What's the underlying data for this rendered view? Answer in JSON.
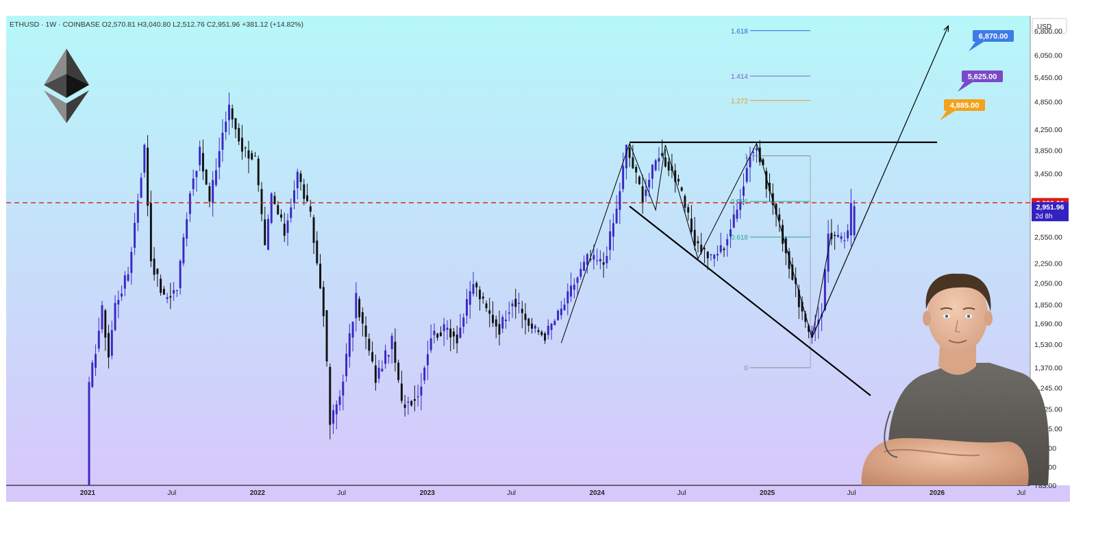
{
  "header": {
    "symbol": "ETHUSD",
    "interval": "1W",
    "exchange": "COINBASE",
    "ohlc": "O2,570.81  H3,040.80  L2,512.76  C2,951.96  +381.12 (+14.82%)"
  },
  "currency_label": "USD",
  "colors": {
    "bg_top": "#b6f7f9",
    "bg_bottom": "#d6c8fb",
    "up_candle": "#3a27c4",
    "down_candle": "#111111",
    "dashed_line": "#e02828",
    "target_blue": "#3d7be6",
    "target_purple": "#7a49c9",
    "target_orange": "#f2a21c",
    "price_badge": "#3321c0",
    "level_badge": "#e01a1a"
  },
  "chart_data": {
    "type": "candlestick",
    "ylim": [
      783,
      7300
    ],
    "y_scale": "log",
    "y_tick_labels": [
      "6,800.00",
      "6,050.00",
      "5,450.00",
      "4,850.00",
      "4,250.00",
      "3,850.00",
      "3,450.00",
      "2,550.00",
      "2,250.00",
      "2,050.00",
      "1,850.00",
      "1,690.00",
      "1,530.00",
      "1,370.00",
      "1,245.00",
      "1,125.00",
      "1,025.00",
      "935.00",
      "855.00",
      "783.00"
    ],
    "x_tick_labels": [
      {
        "label": "2021",
        "bold": true
      },
      {
        "label": "Jul",
        "bold": false
      },
      {
        "label": "2022",
        "bold": true
      },
      {
        "label": "Jul",
        "bold": false
      },
      {
        "label": "2023",
        "bold": true
      },
      {
        "label": "Jul",
        "bold": false
      },
      {
        "label": "2024",
        "bold": true
      },
      {
        "label": "Jul",
        "bold": false
      },
      {
        "label": "2025",
        "bold": true
      },
      {
        "label": "Jul",
        "bold": false
      },
      {
        "label": "2026",
        "bold": true
      },
      {
        "label": "Jul",
        "bold": false
      }
    ],
    "price_path": [
      [
        "2021-01-04",
        730
      ],
      [
        "2021-01-11",
        1250
      ],
      [
        "2021-02-08",
        1800
      ],
      [
        "2021-02-22",
        1450
      ],
      [
        "2021-03-08",
        1850
      ],
      [
        "2021-04-05",
        2150
      ],
      [
        "2021-05-10",
        3900
      ],
      [
        "2021-05-24",
        2300
      ],
      [
        "2021-06-21",
        1900
      ],
      [
        "2021-07-19",
        2000
      ],
      [
        "2021-08-16",
        3200
      ],
      [
        "2021-09-06",
        3800
      ],
      [
        "2021-09-27",
        3000
      ],
      [
        "2021-10-25",
        4200
      ],
      [
        "2021-11-08",
        4700
      ],
      [
        "2021-12-06",
        3900
      ],
      [
        "2022-01-03",
        3700
      ],
      [
        "2022-01-24",
        2400
      ],
      [
        "2022-02-07",
        3100
      ],
      [
        "2022-03-07",
        2600
      ],
      [
        "2022-04-04",
        3450
      ],
      [
        "2022-05-02",
        2800
      ],
      [
        "2022-05-30",
        1800
      ],
      [
        "2022-06-13",
        1050
      ],
      [
        "2022-07-04",
        1200
      ],
      [
        "2022-08-08",
        1900
      ],
      [
        "2022-09-19",
        1300
      ],
      [
        "2022-10-24",
        1550
      ],
      [
        "2022-11-14",
        1150
      ],
      [
        "2022-12-19",
        1200
      ],
      [
        "2023-01-16",
        1600
      ],
      [
        "2023-02-20",
        1650
      ],
      [
        "2023-03-13",
        1580
      ],
      [
        "2023-04-17",
        2050
      ],
      [
        "2023-05-15",
        1800
      ],
      [
        "2023-06-12",
        1650
      ],
      [
        "2023-07-10",
        1900
      ],
      [
        "2023-08-21",
        1650
      ],
      [
        "2023-09-18",
        1600
      ],
      [
        "2023-10-23",
        1800
      ],
      [
        "2023-11-20",
        2050
      ],
      [
        "2023-12-18",
        2300
      ],
      [
        "2024-01-22",
        2250
      ],
      [
        "2024-02-19",
        2900
      ],
      [
        "2024-03-11",
        3900
      ],
      [
        "2024-04-15",
        3100
      ],
      [
        "2024-05-20",
        3800
      ],
      [
        "2024-06-17",
        3500
      ],
      [
        "2024-07-08",
        3100
      ],
      [
        "2024-08-05",
        2500
      ],
      [
        "2024-09-09",
        2300
      ],
      [
        "2024-10-07",
        2450
      ],
      [
        "2024-11-04",
        2900
      ],
      [
        "2024-12-02",
        3800
      ],
      [
        "2024-12-16",
        3900
      ],
      [
        "2025-01-06",
        3300
      ],
      [
        "2025-02-03",
        2700
      ],
      [
        "2025-03-03",
        2100
      ],
      [
        "2025-04-07",
        1580
      ],
      [
        "2025-05-05",
        1800
      ],
      [
        "2025-05-19",
        2600
      ],
      [
        "2025-06-16",
        2500
      ],
      [
        "2025-06-30",
        2570
      ],
      [
        "2025-07-07",
        2952
      ]
    ],
    "last_candle": {
      "open": 2570.81,
      "high": 3040.8,
      "low": 2512.76,
      "close": 2951.96,
      "change": "+381.12 (+14.82%)"
    },
    "fib_levels": [
      {
        "label": "1.618",
        "price": 6800,
        "color": "#2d62d8"
      },
      {
        "label": "1.414",
        "price": 5480,
        "color": "#7e59c6"
      },
      {
        "label": "1.272",
        "price": 4880,
        "color": "#e79a18"
      },
      {
        "label": "1",
        "price": 3750,
        "color": "#888888"
      },
      {
        "label": "0.786",
        "price": 3020,
        "color": "#26a69a"
      },
      {
        "label": "0.618",
        "price": 2550,
        "color": "#26a69a"
      },
      {
        "label": "0",
        "price": 1370,
        "color": "#888888"
      }
    ],
    "resistance_level": 4000,
    "support_line": [
      [
        "2024-03-11",
        2950
      ],
      [
        "2025-08-11",
        1200
      ]
    ],
    "dashed_level": 3000,
    "current_price_label": "2,951.96",
    "dashed_level_label": "3,000.00",
    "countdown": "2d 8h",
    "targets": [
      {
        "label": "6,870.00",
        "price": 6870,
        "color": "#3d7be6"
      },
      {
        "label": "5,625.00",
        "price": 5625,
        "color": "#7a49c9"
      },
      {
        "label": "4,885.00",
        "price": 4885,
        "color": "#f2a21c"
      }
    ],
    "projection_line": [
      [
        "2025-04-07",
        1580
      ],
      [
        "2025-12-15",
        6870
      ]
    ]
  },
  "graphics": {
    "ethereum_logo": "ethereum-logo",
    "portrait": "person-portrait"
  }
}
